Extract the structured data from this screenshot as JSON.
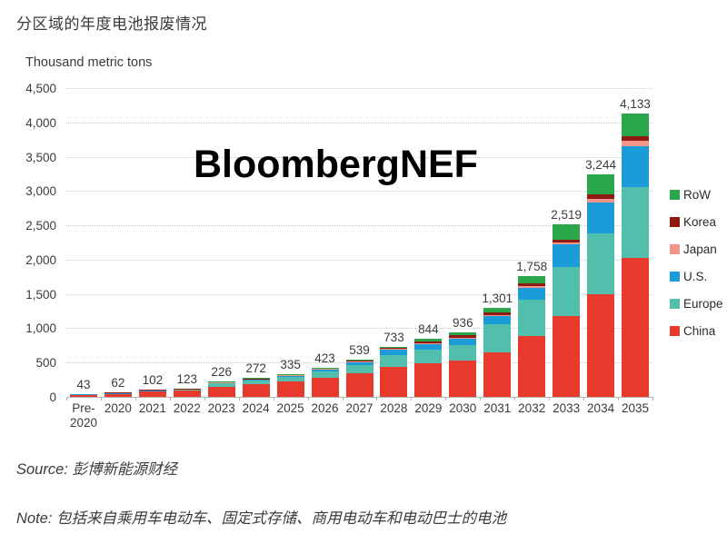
{
  "title": "分区域的年度电池报废情况",
  "y_axis_title": "Thousand metric tons",
  "watermark": "BloombergNEF",
  "source": {
    "label": "Source:",
    "text": "彭博新能源财经"
  },
  "note": {
    "label": "Note:",
    "text": "包括来自乘用车电动车、固定式存储、商用电动车和电动巴士的电池"
  },
  "chart_data": {
    "type": "bar",
    "stacked": true,
    "title": "分区域的年度电池报废情况",
    "ylabel": "Thousand metric tons",
    "ylim": [
      0,
      4500
    ],
    "ytick_step": 500,
    "ytick_labels": [
      "0",
      "500",
      "1,000",
      "1,500",
      "2,000",
      "2,500",
      "3,000",
      "3,500",
      "4,000",
      "4,500"
    ],
    "grid": "horizontal-dotted",
    "legend_position": "right",
    "categories": [
      "Pre-2020",
      "2020",
      "2021",
      "2022",
      "2023",
      "2024",
      "2025",
      "2026",
      "2027",
      "2028",
      "2029",
      "2030",
      "2031",
      "2032",
      "2033",
      "2034",
      "2035"
    ],
    "xtick_labels": [
      "Pre-\n2020",
      "2020",
      "2021",
      "2022",
      "2023",
      "2024",
      "2025",
      "2026",
      "2027",
      "2028",
      "2029",
      "2030",
      "2031",
      "2032",
      "2033",
      "2034",
      "2035"
    ],
    "totals": [
      43,
      62,
      102,
      123,
      226,
      272,
      335,
      423,
      539,
      733,
      844,
      936,
      1301,
      1758,
      2519,
      3244,
      4133
    ],
    "total_labels": [
      "43",
      "62",
      "102",
      "123",
      "226",
      "272",
      "335",
      "423",
      "539",
      "733",
      "844",
      "936",
      "1,301",
      "1,758",
      "2,519",
      "3,244",
      "4,133"
    ],
    "series": [
      {
        "name": "China",
        "color": "#E8392D",
        "values": [
          25,
          45,
          75,
          90,
          150,
          180,
          220,
          275,
          340,
          440,
          490,
          525,
          650,
          890,
          1180,
          1494,
          2020
        ]
      },
      {
        "name": "Europe",
        "color": "#52BFAD",
        "values": [
          12,
          10,
          17,
          20,
          45,
          55,
          70,
          90,
          120,
          175,
          200,
          235,
          410,
          520,
          715,
          890,
          1035
        ]
      },
      {
        "name": "U.S.",
        "color": "#1B9CD8",
        "values": [
          3,
          3,
          5,
          7,
          20,
          25,
          30,
          40,
          55,
          75,
          85,
          95,
          120,
          185,
          330,
          455,
          595
        ]
      },
      {
        "name": "Japan",
        "color": "#F2948A",
        "values": [
          1,
          1,
          1,
          1,
          2,
          3,
          3,
          4,
          5,
          6,
          7,
          10,
          16,
          25,
          28,
          45,
          78
        ]
      },
      {
        "name": "Korea",
        "color": "#8F1A12",
        "values": [
          1,
          2,
          3,
          4,
          7,
          7,
          9,
          10,
          13,
          25,
          28,
          30,
          40,
          40,
          42,
          70,
          75
        ]
      },
      {
        "name": "RoW",
        "color": "#2AA64B",
        "values": [
          1,
          1,
          1,
          1,
          2,
          2,
          3,
          4,
          6,
          12,
          34,
          41,
          65,
          98,
          224,
          290,
          330
        ]
      }
    ],
    "legend": [
      {
        "label": "RoW",
        "color": "#2AA64B"
      },
      {
        "label": "Korea",
        "color": "#8F1A12"
      },
      {
        "label": "Japan",
        "color": "#F2948A"
      },
      {
        "label": "U.S.",
        "color": "#1B9CD8"
      },
      {
        "label": "Europe",
        "color": "#52BFAD"
      },
      {
        "label": "China",
        "color": "#E8392D"
      }
    ]
  }
}
